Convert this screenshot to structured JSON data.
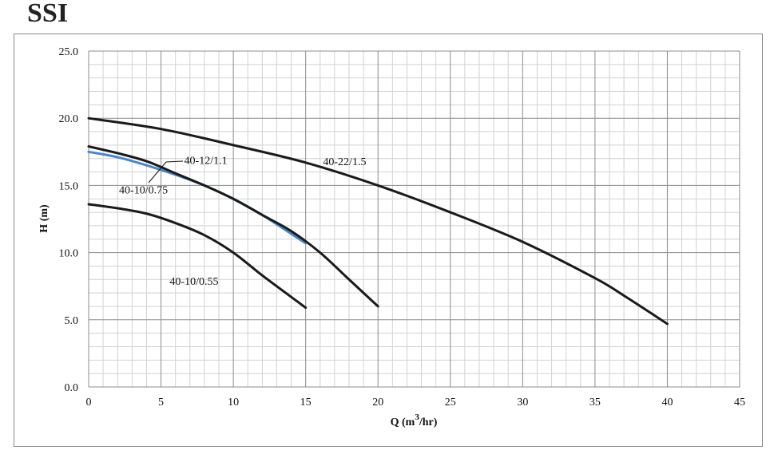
{
  "brand": "SSI",
  "chart_data": {
    "type": "line",
    "xlabel": "Q (m³/hr)",
    "xlabel_main": "Q (m",
    "xlabel_sup": "3",
    "xlabel_tail": "/hr)",
    "ylabel": "H (m)",
    "xlim": [
      0,
      45
    ],
    "ylim": [
      0,
      25
    ],
    "x_ticks": [
      0,
      5,
      10,
      15,
      20,
      25,
      30,
      35,
      40,
      45
    ],
    "y_ticks": [
      "0.0",
      "5.0",
      "10.0",
      "15.0",
      "20.0",
      "25.0"
    ],
    "grid": true,
    "series": [
      {
        "name": "40-10/0.55",
        "color": "#1a1a1a",
        "points": [
          [
            0,
            13.6
          ],
          [
            2,
            13.3
          ],
          [
            4,
            12.9
          ],
          [
            6,
            12.2
          ],
          [
            8,
            11.3
          ],
          [
            10,
            10.0
          ],
          [
            12,
            8.3
          ],
          [
            14,
            6.7
          ],
          [
            15,
            5.9
          ]
        ]
      },
      {
        "name": "40-10/0.75",
        "color": "#4a86c8",
        "points": [
          [
            0,
            17.5
          ],
          [
            2,
            17.1
          ],
          [
            4,
            16.5
          ],
          [
            6,
            15.8
          ],
          [
            8,
            15.0
          ],
          [
            10,
            14.0
          ],
          [
            12,
            12.8
          ],
          [
            14,
            11.4
          ],
          [
            15,
            10.7
          ]
        ]
      },
      {
        "name": "40-12/1.1",
        "color": "#1a1a1a",
        "points": [
          [
            0,
            17.9
          ],
          [
            2,
            17.4
          ],
          [
            4,
            16.8
          ],
          [
            6,
            15.9
          ],
          [
            8,
            15.0
          ],
          [
            10,
            14.0
          ],
          [
            12,
            12.8
          ],
          [
            14,
            11.6
          ],
          [
            16,
            10.0
          ],
          [
            18,
            8.0
          ],
          [
            20,
            6.0
          ]
        ]
      },
      {
        "name": "40-22/1.5",
        "color": "#1a1a1a",
        "points": [
          [
            0,
            20.0
          ],
          [
            5,
            19.2
          ],
          [
            10,
            18.0
          ],
          [
            15,
            16.7
          ],
          [
            20,
            15.0
          ],
          [
            25,
            13.0
          ],
          [
            30,
            10.8
          ],
          [
            35,
            8.1
          ],
          [
            37,
            6.8
          ],
          [
            40,
            4.7
          ]
        ]
      }
    ],
    "labels": [
      {
        "text": "40-22/1.5",
        "x": 16.2,
        "y": 16.5
      },
      {
        "text": "40-12/1.1",
        "x": 6.6,
        "y": 16.6
      },
      {
        "text": "40-10/0.75",
        "x": 2.1,
        "y": 14.4
      },
      {
        "text": "40-10/0.55",
        "x": 5.6,
        "y": 7.6
      }
    ]
  }
}
